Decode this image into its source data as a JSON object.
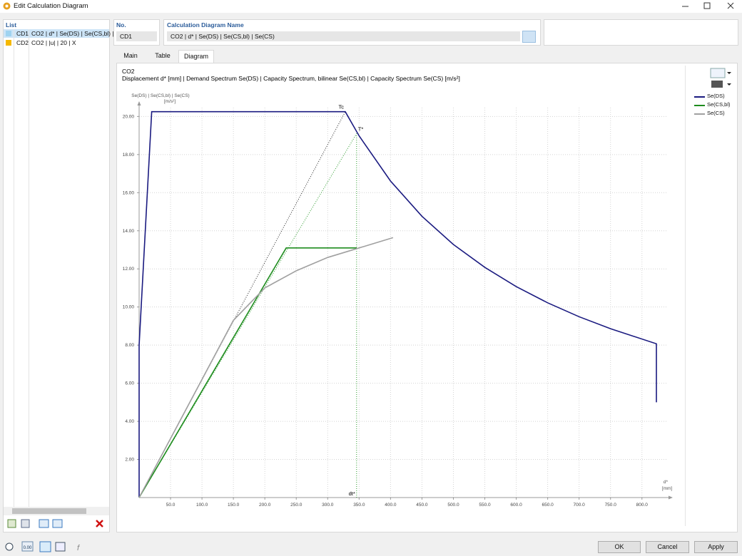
{
  "window": {
    "title": "Edit Calculation Diagram"
  },
  "list": {
    "header": "List",
    "items": [
      {
        "no": "CD1",
        "name": "CO2 | d* | Se(DS) | Se(CS,bl) |",
        "color": "#9fd3f0"
      },
      {
        "no": "CD2",
        "name": "CO2 | |u| | 20 | X",
        "color": "#f5b800"
      }
    ]
  },
  "form": {
    "no_label": "No.",
    "no_value": "CD1",
    "name_label": "Calculation Diagram Name",
    "name_value": "CO2 | d* | Se(DS) | Se(CS,bl) | Se(CS)"
  },
  "tabs": [
    "Main",
    "Table",
    "Diagram"
  ],
  "status_toolbar": {
    "decimals": "0.00"
  },
  "chart_data": {
    "type": "line",
    "title": "CO2",
    "subtitle": "Displacement d* [mm] | Demand Spectrum Se(DS) | Capacity Spectrum, bilinear Se(CS,bl) | Capacity Spectrum Se(CS) [m/s²]",
    "y_label": "Se(DS) | Se(CS,bl) | Se(CS)",
    "y_unit": "[m/s²]",
    "x_label": "d*",
    "x_unit": "[mm]",
    "xlim": [
      0,
      840
    ],
    "ylim": [
      0,
      20.5
    ],
    "xticks": [
      {
        "value": 50,
        "label": "50.0"
      },
      {
        "value": 100,
        "label": "100.0"
      },
      {
        "value": 150,
        "label": "150.0"
      },
      {
        "value": 200,
        "label": "200.0"
      },
      {
        "value": 250,
        "label": "250.0"
      },
      {
        "value": 300,
        "label": "300.0"
      },
      {
        "value": 350,
        "label": "350.0"
      },
      {
        "value": 400,
        "label": "400.0"
      },
      {
        "value": 450,
        "label": "450.0"
      },
      {
        "value": 500,
        "label": "500.0"
      },
      {
        "value": 550,
        "label": "550.0"
      },
      {
        "value": 600,
        "label": "600.0"
      },
      {
        "value": 650,
        "label": "650.0"
      },
      {
        "value": 700,
        "label": "700.0"
      },
      {
        "value": 750,
        "label": "750.0"
      },
      {
        "value": 800,
        "label": "800.0"
      }
    ],
    "yticks": [
      {
        "value": 2,
        "label": "2.00"
      },
      {
        "value": 4,
        "label": "4.00"
      },
      {
        "value": 6,
        "label": "6.00"
      },
      {
        "value": 8,
        "label": "8.00"
      },
      {
        "value": 10,
        "label": "10.00"
      },
      {
        "value": 12,
        "label": "12.00"
      },
      {
        "value": 14,
        "label": "14.00"
      },
      {
        "value": 16,
        "label": "16.00"
      },
      {
        "value": 18,
        "label": "18.00"
      },
      {
        "value": 20,
        "label": "20.00"
      }
    ],
    "grid": true,
    "legend": "right",
    "series": [
      {
        "name": "Se(DS)",
        "color": "#1a1a80",
        "x": [
          0,
          0,
          20,
          328,
          350,
          400,
          450,
          500,
          550,
          600,
          650,
          700,
          750,
          823,
          823
        ],
        "values": [
          0,
          8,
          20.25,
          20.25,
          18.98,
          16.61,
          14.76,
          13.28,
          12.08,
          11.07,
          10.22,
          9.49,
          8.86,
          8.07,
          5.0
        ]
      },
      {
        "name": "Se(CS,bl)",
        "color": "#1e8c1e",
        "x": [
          0,
          234,
          346
        ],
        "values": [
          0,
          13.1,
          13.1
        ]
      },
      {
        "name": "Se(CS)",
        "color": "#a0a0a0",
        "x": [
          0,
          100,
          150,
          200,
          250,
          300,
          350,
          404
        ],
        "values": [
          0,
          6.2,
          9.3,
          11.0,
          11.9,
          12.6,
          13.1,
          13.64
        ]
      }
    ],
    "annotations": [
      {
        "text": "Tc",
        "x": 328,
        "y": 20.25,
        "line": "ray",
        "side": "left",
        "color": "#222222"
      },
      {
        "text": "T*",
        "x": 346,
        "y": 19.1,
        "line": "ray",
        "side": "right",
        "color": "#2a9a2a"
      },
      {
        "text": "dt*",
        "x": 346,
        "y": 19.1,
        "line": "vertical",
        "side": "left",
        "color": "#2a9a2a"
      }
    ]
  },
  "buttons": [
    "OK",
    "Cancel",
    "Apply"
  ]
}
